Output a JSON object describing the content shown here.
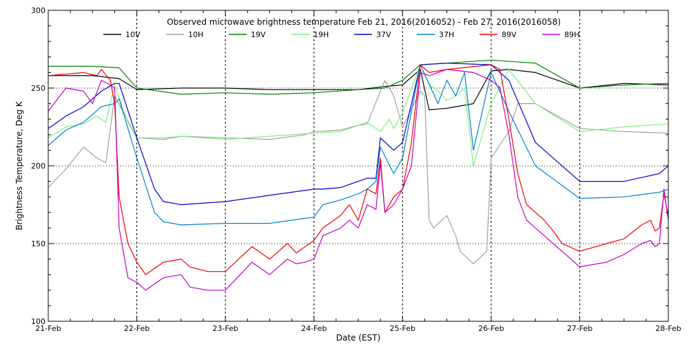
{
  "chart_data": {
    "type": "line",
    "title": "Observed microwave brightness temperature Feb 21, 2016(2016052) - Feb 27, 2016(2016058)",
    "xlabel": "Date (EST)",
    "ylabel": "Brightness Temperature, Deg K",
    "ylim": [
      100,
      300
    ],
    "yticks": [
      100,
      150,
      200,
      250,
      300
    ],
    "xlim": [
      0,
      7
    ],
    "xtick_labels": [
      "21-Feb",
      "22-Feb",
      "23-Feb",
      "24-Feb",
      "25-Feb",
      "26-Feb",
      "27-Feb",
      "28-Feb"
    ],
    "grid": true,
    "legend_position": "top",
    "x_units": "days since 21-Feb 00:00",
    "series": [
      {
        "name": "10V",
        "color": "#000000",
        "x": [
          0,
          0.5,
          0.8,
          1.0,
          1.5,
          2.0,
          2.5,
          3.0,
          3.5,
          3.8,
          4.0,
          4.2,
          4.3,
          4.5,
          4.8,
          5.0,
          5.2,
          5.5,
          6.0,
          6.5,
          7.0
        ],
        "y": [
          258,
          258,
          256,
          249,
          250,
          250,
          249,
          249,
          249,
          251,
          252,
          262,
          236,
          237,
          240,
          261,
          262,
          260,
          250,
          253,
          252
        ]
      },
      {
        "name": "10H",
        "color": "#a0a0a0",
        "x": [
          0,
          0.2,
          0.4,
          0.55,
          0.65,
          0.75,
          1.0,
          1.3,
          1.5,
          2.0,
          2.5,
          2.9,
          3.0,
          3.3,
          3.5,
          3.6,
          3.8,
          3.9,
          4.0,
          4.2,
          4.25,
          4.3,
          4.35,
          4.5,
          4.6,
          4.65,
          4.8,
          4.95,
          5.0,
          5.2,
          5.3,
          5.5,
          6.0,
          6.5,
          7.0
        ],
        "y": [
          186,
          198,
          212,
          205,
          202,
          245,
          218,
          217,
          219,
          218,
          217,
          220,
          222,
          223,
          226,
          227,
          255,
          245,
          225,
          248,
          245,
          165,
          160,
          168,
          155,
          145,
          137,
          145,
          205,
          222,
          240,
          240,
          224,
          222,
          221
        ]
      },
      {
        "name": "19V",
        "color": "#008000",
        "x": [
          0,
          0.5,
          0.8,
          1.0,
          1.5,
          2.0,
          2.5,
          3.0,
          3.5,
          3.8,
          4.0,
          4.2,
          4.5,
          5.0,
          5.5,
          6.0,
          6.5,
          7.0
        ],
        "y": [
          264,
          264,
          263,
          250,
          246,
          247,
          246,
          247,
          249,
          250,
          255,
          265,
          266,
          268,
          266,
          250,
          252,
          253
        ]
      },
      {
        "name": "19H",
        "color": "#7cf07c",
        "x": [
          0,
          0.2,
          0.4,
          0.55,
          0.65,
          0.75,
          0.9,
          1.0,
          1.3,
          1.5,
          2.0,
          2.5,
          3.0,
          3.3,
          3.5,
          3.6,
          3.75,
          3.85,
          3.9,
          4.0,
          4.2,
          4.3,
          4.4,
          4.5,
          4.6,
          4.7,
          4.8,
          5.0,
          5.2,
          5.5,
          6.0,
          6.5,
          7.0
        ],
        "y": [
          218,
          225,
          227,
          232,
          228,
          252,
          228,
          218,
          218,
          219,
          217,
          219,
          221,
          222,
          226,
          228,
          222,
          230,
          224,
          234,
          265,
          252,
          248,
          242,
          245,
          250,
          200,
          240,
          262,
          240,
          222,
          225,
          227
        ]
      },
      {
        "name": "37V",
        "color": "#0000cc",
        "x": [
          0,
          0.2,
          0.4,
          0.6,
          0.75,
          0.8,
          1.0,
          1.2,
          1.3,
          1.5,
          2.0,
          2.5,
          3.0,
          3.1,
          3.3,
          3.5,
          3.6,
          3.7,
          3.75,
          3.9,
          4.0,
          4.2,
          4.5,
          5.0,
          5.2,
          5.5,
          6.0,
          6.5,
          6.9,
          7.0
        ],
        "y": [
          224,
          232,
          238,
          248,
          253,
          253,
          218,
          185,
          177,
          175,
          177,
          181,
          185,
          185,
          186,
          190,
          192,
          192,
          218,
          210,
          215,
          265,
          266,
          265,
          255,
          215,
          190,
          190,
          195,
          200
        ]
      },
      {
        "name": "37H",
        "color": "#0080d0",
        "x": [
          0,
          0.2,
          0.4,
          0.6,
          0.75,
          0.8,
          1.0,
          1.2,
          1.3,
          1.5,
          2.0,
          2.5,
          3.0,
          3.1,
          3.3,
          3.5,
          3.6,
          3.7,
          3.75,
          3.9,
          4.0,
          4.2,
          4.4,
          4.5,
          4.6,
          4.7,
          4.8,
          5.0,
          5.2,
          5.5,
          6.0,
          6.5,
          6.9,
          7.0
        ],
        "y": [
          213,
          223,
          228,
          238,
          240,
          243,
          205,
          170,
          164,
          162,
          163,
          163,
          167,
          175,
          178,
          182,
          185,
          190,
          212,
          195,
          205,
          265,
          240,
          255,
          245,
          260,
          210,
          260,
          235,
          200,
          179,
          180,
          183,
          185
        ]
      },
      {
        "name": "89V",
        "color": "#ee0000",
        "x": [
          0,
          0.2,
          0.4,
          0.55,
          0.6,
          0.7,
          0.75,
          0.8,
          0.9,
          1.0,
          1.1,
          1.3,
          1.5,
          1.6,
          1.8,
          2.0,
          2.3,
          2.5,
          2.7,
          2.8,
          2.9,
          3.0,
          3.1,
          3.3,
          3.4,
          3.5,
          3.6,
          3.7,
          3.75,
          3.8,
          3.9,
          4.0,
          4.1,
          4.2,
          4.3,
          4.5,
          5.0,
          5.1,
          5.2,
          5.3,
          5.4,
          5.5,
          5.6,
          5.7,
          5.8,
          6.0,
          6.3,
          6.5,
          6.7,
          6.8,
          6.85,
          6.9,
          6.95,
          7.0
        ],
        "y": [
          258,
          259,
          260,
          258,
          262,
          255,
          240,
          180,
          150,
          138,
          130,
          138,
          140,
          135,
          132,
          132,
          148,
          140,
          150,
          144,
          148,
          152,
          160,
          168,
          175,
          165,
          185,
          182,
          205,
          170,
          180,
          185,
          215,
          265,
          260,
          262,
          265,
          262,
          230,
          195,
          175,
          170,
          165,
          158,
          150,
          145,
          150,
          153,
          162,
          165,
          158,
          160,
          182,
          168
        ]
      },
      {
        "name": "89H",
        "color": "#c000c0",
        "x": [
          0,
          0.2,
          0.4,
          0.5,
          0.6,
          0.7,
          0.75,
          0.8,
          0.9,
          1.0,
          1.1,
          1.3,
          1.5,
          1.6,
          1.8,
          2.0,
          2.3,
          2.5,
          2.7,
          2.8,
          2.9,
          3.0,
          3.1,
          3.3,
          3.4,
          3.5,
          3.6,
          3.7,
          3.75,
          3.8,
          3.9,
          4.0,
          4.1,
          4.2,
          4.3,
          4.5,
          4.8,
          5.0,
          5.1,
          5.2,
          5.3,
          5.4,
          5.5,
          5.6,
          5.7,
          5.8,
          6.0,
          6.3,
          6.5,
          6.7,
          6.8,
          6.85,
          6.9,
          6.95,
          7.0
        ],
        "y": [
          235,
          250,
          248,
          240,
          255,
          252,
          250,
          160,
          128,
          125,
          120,
          128,
          130,
          122,
          120,
          120,
          138,
          130,
          140,
          137,
          138,
          140,
          155,
          160,
          165,
          160,
          175,
          172,
          202,
          170,
          175,
          185,
          200,
          260,
          258,
          262,
          260,
          255,
          250,
          220,
          180,
          165,
          160,
          155,
          150,
          145,
          135,
          138,
          143,
          150,
          152,
          148,
          150,
          185,
          165
        ]
      }
    ]
  }
}
